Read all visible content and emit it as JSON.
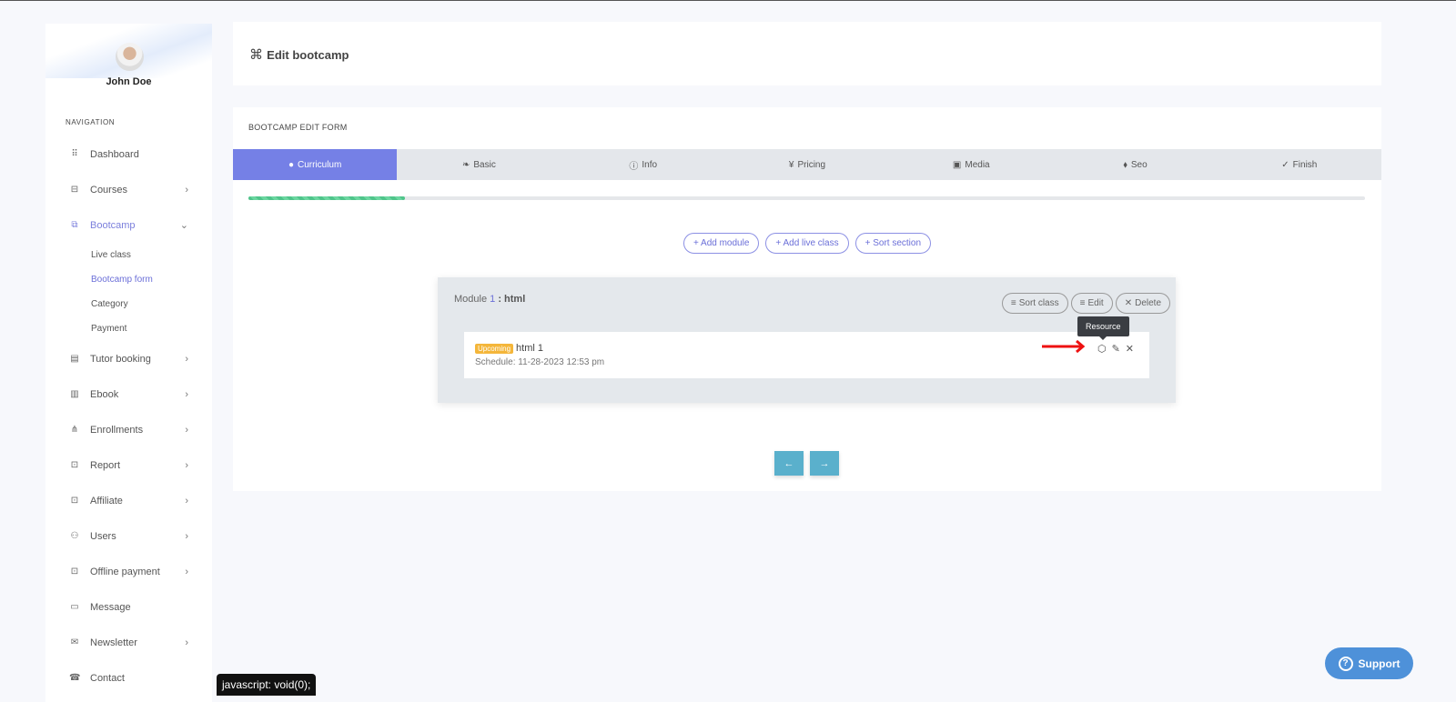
{
  "user": {
    "name": "John Doe"
  },
  "sidebar": {
    "section": "NAVIGATION",
    "items": [
      {
        "label": "Dashboard",
        "icon": "grid-icon",
        "glyph": "⠿",
        "chev": ""
      },
      {
        "label": "Courses",
        "icon": "basket-icon",
        "glyph": "⊟",
        "chev": "›"
      },
      {
        "label": "Bootcamp",
        "icon": "cast-icon",
        "glyph": "⧉",
        "chev": "⌄"
      },
      {
        "label": "Tutor booking",
        "icon": "document-icon",
        "glyph": "▤",
        "chev": "›"
      },
      {
        "label": "Ebook",
        "icon": "book-icon",
        "glyph": "▥",
        "chev": "›"
      },
      {
        "label": "Enrollments",
        "icon": "hierarchy-icon",
        "glyph": "⋔",
        "chev": "›"
      },
      {
        "label": "Report",
        "icon": "archive-icon",
        "glyph": "⊡",
        "chev": "›"
      },
      {
        "label": "Affiliate",
        "icon": "archive-icon",
        "glyph": "⊡",
        "chev": "›"
      },
      {
        "label": "Users",
        "icon": "users-icon",
        "glyph": "⚇",
        "chev": "›"
      },
      {
        "label": "Offline payment",
        "icon": "archive-icon",
        "glyph": "⊡",
        "chev": "›"
      },
      {
        "label": "Message",
        "icon": "message-icon",
        "glyph": "▭",
        "chev": ""
      },
      {
        "label": "Newsletter",
        "icon": "envelope-icon",
        "glyph": "✉",
        "chev": "›"
      },
      {
        "label": "Contact",
        "icon": "contact-icon",
        "glyph": "☎",
        "chev": ""
      }
    ],
    "bootcamp_sub": [
      "Live class",
      "Bootcamp form",
      "Category",
      "Payment"
    ]
  },
  "header": {
    "title": "Edit bootcamp",
    "icon": "command-icon"
  },
  "form": {
    "title": "BOOTCAMP EDIT FORM",
    "tabs": [
      {
        "label": "Curriculum",
        "glyph": "●"
      },
      {
        "label": "Basic",
        "glyph": "❧"
      },
      {
        "label": "Info",
        "glyph": "ⓘ"
      },
      {
        "label": "Pricing",
        "glyph": "¥"
      },
      {
        "label": "Media",
        "glyph": "▣"
      },
      {
        "label": "Seo",
        "glyph": "⬧"
      },
      {
        "label": "Finish",
        "glyph": "✓"
      }
    ],
    "progress_percent": 14,
    "actions": [
      "+ Add module",
      "+ Add live class",
      "+ Sort section"
    ],
    "module": {
      "prefix": "Module",
      "number": "1",
      "name": ": html",
      "buttons": [
        "Sort class",
        "Edit",
        "Delete"
      ],
      "lesson": {
        "badge": "Upcoming",
        "title": "html 1",
        "schedule": "Schedule: 11-28-2023 12:53 pm"
      }
    },
    "tooltip": "Resource",
    "prev": "←",
    "next": "→"
  },
  "statusbar": "javascript: void(0);",
  "support": "Support",
  "colors": {
    "accent": "#7580e6",
    "badge": "#f4b63a",
    "nav_button": "#5ab0cc",
    "support": "#4e91d9"
  }
}
